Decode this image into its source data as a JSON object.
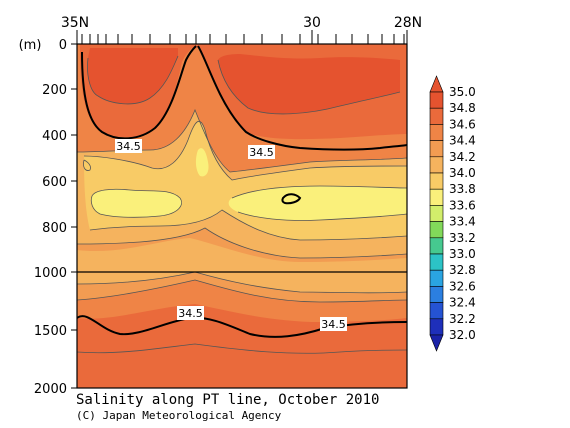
{
  "chart_data": {
    "type": "heatmap",
    "title": "Salinity along PT line, October 2010",
    "credit": "(C) Japan Meteorological Agency",
    "ylabel": "(m)",
    "x_ticks": [
      {
        "label": "35N",
        "lat": 35
      },
      {
        "label": "30",
        "lat": 30
      },
      {
        "label": "28N",
        "lat": 28
      }
    ],
    "y_ticks": [
      "0",
      "200",
      "400",
      "600",
      "800",
      "1000",
      "1500",
      "2000"
    ],
    "y_break_at": "1000",
    "contour_labels": [
      {
        "text": "34.5",
        "depth": 440
      },
      {
        "text": "34.5",
        "depth": 470
      },
      {
        "text": "34.5",
        "depth": 1380
      },
      {
        "text": "34.5",
        "depth": 1430
      }
    ],
    "colorbar": {
      "levels": [
        "35.0",
        "34.8",
        "34.6",
        "34.4",
        "34.2",
        "34.0",
        "33.8",
        "33.6",
        "33.4",
        "33.2",
        "33.0",
        "32.8",
        "32.6",
        "32.4",
        "32.2",
        "32.0"
      ],
      "colors": [
        "#e5532f",
        "#ea6a3b",
        "#ef8446",
        "#f29c52",
        "#f5b35e",
        "#f8cb66",
        "#faf07b",
        "#d2ee6b",
        "#82d95a",
        "#46c98f",
        "#2cc3c6",
        "#2aa4e1",
        "#2b7fe0",
        "#2553d3",
        "#1e2fba"
      ],
      "min": 32.0,
      "max": 35.0
    }
  }
}
